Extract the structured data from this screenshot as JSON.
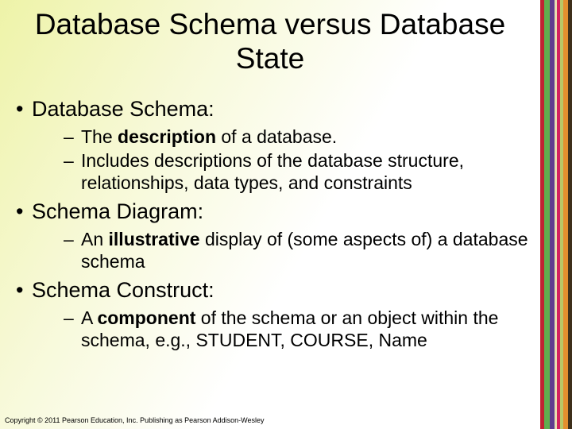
{
  "background": {
    "gradient_start": "#eef3a8",
    "gradient_mid": "#f7f9d8",
    "gradient_end": "#ffffff"
  },
  "stripes": [
    {
      "color": "#c02232",
      "width": 5
    },
    {
      "color": "#5fae4e",
      "width": 7
    },
    {
      "color": "#603d8f",
      "width": 6
    },
    {
      "color": "#e9deb1",
      "width": 3
    },
    {
      "color": "#d3215f",
      "width": 4
    },
    {
      "color": "#b8c766",
      "width": 4
    },
    {
      "color": "#e38f2e",
      "width": 6
    },
    {
      "color": "#3d2f1a",
      "width": 5
    }
  ],
  "title": "Database Schema versus Database State",
  "title_fontsize": 37,
  "body_fontsize": 27,
  "sub_fontsize": 23,
  "bullets": [
    {
      "label": "Database Schema:",
      "subs": [
        {
          "pre": "The ",
          "bold": "description",
          "post": " of a database."
        },
        {
          "pre": "Includes descriptions of the database structure, relationships, data types, and constraints",
          "bold": "",
          "post": ""
        }
      ]
    },
    {
      "label": "Schema Diagram:",
      "subs": [
        {
          "pre": "An ",
          "bold": "illustrative",
          "post": " display of (some aspects of) a database schema"
        }
      ]
    },
    {
      "label": "Schema Construct:",
      "subs": [
        {
          "pre": "A ",
          "bold": "component",
          "post": " of the schema or an object within the schema, e.g., STUDENT, COURSE, Name"
        }
      ]
    }
  ],
  "copyright": "Copyright © 2011 Pearson Education, Inc. Publishing as Pearson Addison-Wesley"
}
